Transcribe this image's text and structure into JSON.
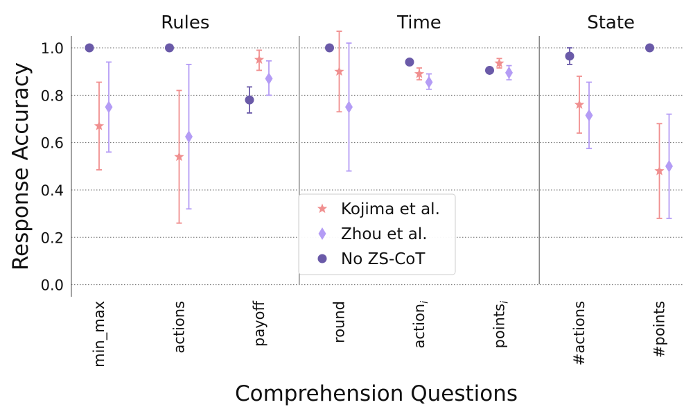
{
  "chart_data": {
    "type": "scatter",
    "xlabel": "Comprehension Questions",
    "ylabel": "Response Accuracy",
    "ylim": [
      -0.05,
      1.05
    ],
    "yticks": [
      "0.0",
      "0.2",
      "0.4",
      "0.6",
      "0.8",
      "1.0"
    ],
    "ytick_values": [
      0.0,
      0.2,
      0.4,
      0.6,
      0.8,
      1.0
    ],
    "grid": "horizontal dotted",
    "legend_position": "bottom-center",
    "groups": [
      {
        "label": "Rules",
        "categories": [
          "min_max",
          "actions",
          "payoff"
        ]
      },
      {
        "label": "Time",
        "categories": [
          "round",
          "action_i",
          "points_i"
        ]
      },
      {
        "label": "State",
        "categories": [
          "#actions",
          "#points"
        ]
      }
    ],
    "categories": [
      "min_max",
      "actions",
      "payoff",
      "round",
      "action_i",
      "points_i",
      "#actions",
      "#points"
    ],
    "category_labels": [
      {
        "base": "min_max",
        "sub": ""
      },
      {
        "base": "actions",
        "sub": ""
      },
      {
        "base": "payoff",
        "sub": ""
      },
      {
        "base": "round",
        "sub": ""
      },
      {
        "base": "action",
        "sub": "i"
      },
      {
        "base": "points",
        "sub": "i"
      },
      {
        "base": "#actions",
        "sub": ""
      },
      {
        "base": "#points",
        "sub": ""
      }
    ],
    "series": [
      {
        "name": "No ZS-CoT",
        "color": "#6a5aa8",
        "marker": "circle",
        "values": [
          1.0,
          1.0,
          0.78,
          1.0,
          0.94,
          0.905,
          0.965,
          1.0
        ],
        "lower": [
          null,
          null,
          0.725,
          null,
          null,
          null,
          0.93,
          null
        ],
        "upper": [
          null,
          null,
          0.835,
          null,
          null,
          null,
          1.0,
          null
        ]
      },
      {
        "name": "Kojima et al.",
        "color": "#f08f8f",
        "marker": "star",
        "values": [
          0.67,
          0.54,
          0.95,
          0.9,
          0.89,
          0.935,
          0.76,
          0.48
        ],
        "lower": [
          0.485,
          0.26,
          0.905,
          0.73,
          0.865,
          0.915,
          0.64,
          0.28
        ],
        "upper": [
          0.855,
          0.82,
          0.99,
          1.07,
          0.915,
          0.955,
          0.88,
          0.68
        ]
      },
      {
        "name": "Zhou et al.",
        "color": "#b49cf5",
        "marker": "diamond",
        "values": [
          0.75,
          0.625,
          0.87,
          0.75,
          0.855,
          0.895,
          0.715,
          0.5
        ],
        "lower": [
          0.56,
          0.32,
          0.8,
          0.48,
          0.825,
          0.865,
          0.575,
          0.28
        ],
        "upper": [
          0.94,
          0.93,
          0.945,
          1.02,
          0.89,
          0.925,
          0.855,
          0.72
        ]
      }
    ],
    "legend_order": [
      "Kojima et al.",
      "Zhou et al.",
      "No ZS-CoT"
    ]
  }
}
